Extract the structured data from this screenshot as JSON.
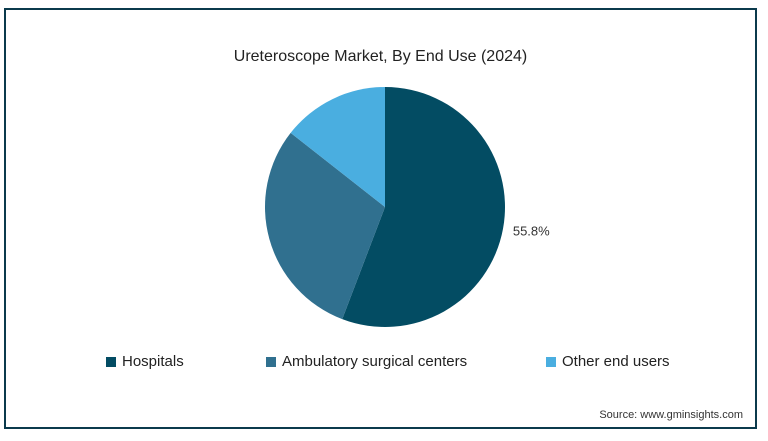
{
  "chart_data": {
    "type": "pie",
    "title": "Ureteroscope Market, By End Use (2024)",
    "categories": [
      "Hospitals",
      "Ambulatory surgical centers",
      "Other end users"
    ],
    "values": [
      55.8,
      29.8,
      14.4
    ],
    "colors": [
      "#034c63",
      "#30708f",
      "#4aaee0"
    ],
    "data_labels": [
      "55.8%",
      "",
      ""
    ],
    "legend_position": "bottom"
  },
  "footer": {
    "source": "Source: www.gminsights.com"
  }
}
